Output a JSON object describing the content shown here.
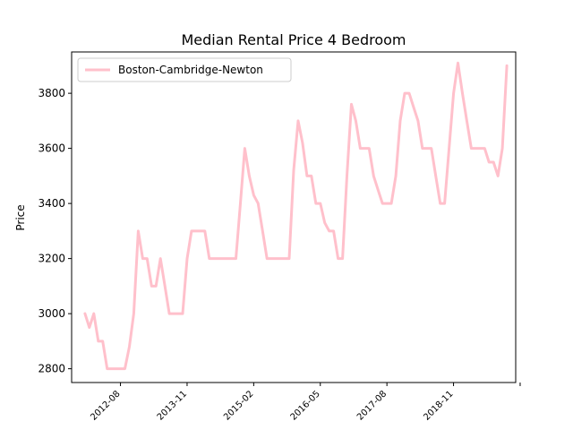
{
  "chart_data": {
    "type": "line",
    "title": "Median Rental Price 4 Bedroom",
    "xlabel": "",
    "ylabel": "Price",
    "ylim": [
      2750,
      3950
    ],
    "xlim": [
      "2011-09",
      "2020-01"
    ],
    "yticks": [
      2800,
      3000,
      3200,
      3400,
      3600,
      3800
    ],
    "xticks": [
      "2012-08",
      "2013-11",
      "2015-02",
      "2016-05",
      "2017-08",
      "2018-11",
      "2020-02"
    ],
    "xtick_labels": [
      "2012-08",
      "2013-11",
      "2015-02",
      "2016-05",
      "2017-08",
      "2018-11",
      ""
    ],
    "grid": false,
    "legend_position": "upper left",
    "series": [
      {
        "name": "Boston-Cambridge-Newton",
        "color": "#ffc0cb",
        "points": [
          [
            "2011-12",
            3000
          ],
          [
            "2012-01",
            2950
          ],
          [
            "2012-02",
            3000
          ],
          [
            "2012-03",
            2900
          ],
          [
            "2012-04",
            2900
          ],
          [
            "2012-05",
            2800
          ],
          [
            "2012-06",
            2800
          ],
          [
            "2012-07",
            2800
          ],
          [
            "2012-08",
            2800
          ],
          [
            "2012-09",
            2800
          ],
          [
            "2012-10",
            2880
          ],
          [
            "2012-11",
            3000
          ],
          [
            "2012-12",
            3300
          ],
          [
            "2013-01",
            3200
          ],
          [
            "2013-02",
            3200
          ],
          [
            "2013-03",
            3100
          ],
          [
            "2013-04",
            3100
          ],
          [
            "2013-05",
            3200
          ],
          [
            "2013-06",
            3100
          ],
          [
            "2013-07",
            3000
          ],
          [
            "2013-08",
            3000
          ],
          [
            "2013-09",
            3000
          ],
          [
            "2013-10",
            3000
          ],
          [
            "2013-11",
            3200
          ],
          [
            "2013-12",
            3300
          ],
          [
            "2014-01",
            3300
          ],
          [
            "2014-02",
            3300
          ],
          [
            "2014-03",
            3300
          ],
          [
            "2014-04",
            3200
          ],
          [
            "2014-05",
            3200
          ],
          [
            "2014-06",
            3200
          ],
          [
            "2014-07",
            3200
          ],
          [
            "2014-08",
            3200
          ],
          [
            "2014-09",
            3200
          ],
          [
            "2014-10",
            3200
          ],
          [
            "2014-11",
            3400
          ],
          [
            "2014-12",
            3600
          ],
          [
            "2015-01",
            3500
          ],
          [
            "2015-02",
            3430
          ],
          [
            "2015-03",
            3400
          ],
          [
            "2015-04",
            3300
          ],
          [
            "2015-05",
            3200
          ],
          [
            "2015-06",
            3200
          ],
          [
            "2015-07",
            3200
          ],
          [
            "2015-08",
            3200
          ],
          [
            "2015-09",
            3200
          ],
          [
            "2015-10",
            3200
          ],
          [
            "2015-11",
            3520
          ],
          [
            "2015-12",
            3700
          ],
          [
            "2016-01",
            3620
          ],
          [
            "2016-02",
            3500
          ],
          [
            "2016-03",
            3500
          ],
          [
            "2016-04",
            3400
          ],
          [
            "2016-05",
            3400
          ],
          [
            "2016-06",
            3330
          ],
          [
            "2016-07",
            3300
          ],
          [
            "2016-08",
            3300
          ],
          [
            "2016-09",
            3200
          ],
          [
            "2016-10",
            3200
          ],
          [
            "2016-11",
            3500
          ],
          [
            "2016-12",
            3760
          ],
          [
            "2017-01",
            3700
          ],
          [
            "2017-02",
            3600
          ],
          [
            "2017-03",
            3600
          ],
          [
            "2017-04",
            3600
          ],
          [
            "2017-05",
            3500
          ],
          [
            "2017-06",
            3450
          ],
          [
            "2017-07",
            3400
          ],
          [
            "2017-08",
            3400
          ],
          [
            "2017-09",
            3400
          ],
          [
            "2017-10",
            3500
          ],
          [
            "2017-11",
            3700
          ],
          [
            "2017-12",
            3800
          ],
          [
            "2018-01",
            3800
          ],
          [
            "2018-02",
            3750
          ],
          [
            "2018-03",
            3700
          ],
          [
            "2018-04",
            3600
          ],
          [
            "2018-05",
            3600
          ],
          [
            "2018-06",
            3600
          ],
          [
            "2018-07",
            3500
          ],
          [
            "2018-08",
            3400
          ],
          [
            "2018-09",
            3400
          ],
          [
            "2018-10",
            3600
          ],
          [
            "2018-11",
            3800
          ],
          [
            "2018-12",
            3910
          ],
          [
            "2019-01",
            3800
          ],
          [
            "2019-02",
            3700
          ],
          [
            "2019-03",
            3600
          ],
          [
            "2019-04",
            3600
          ],
          [
            "2019-05",
            3600
          ],
          [
            "2019-06",
            3600
          ],
          [
            "2019-07",
            3550
          ],
          [
            "2019-08",
            3550
          ],
          [
            "2019-09",
            3500
          ],
          [
            "2019-10",
            3600
          ],
          [
            "2019-11",
            3900
          ]
        ]
      }
    ]
  }
}
